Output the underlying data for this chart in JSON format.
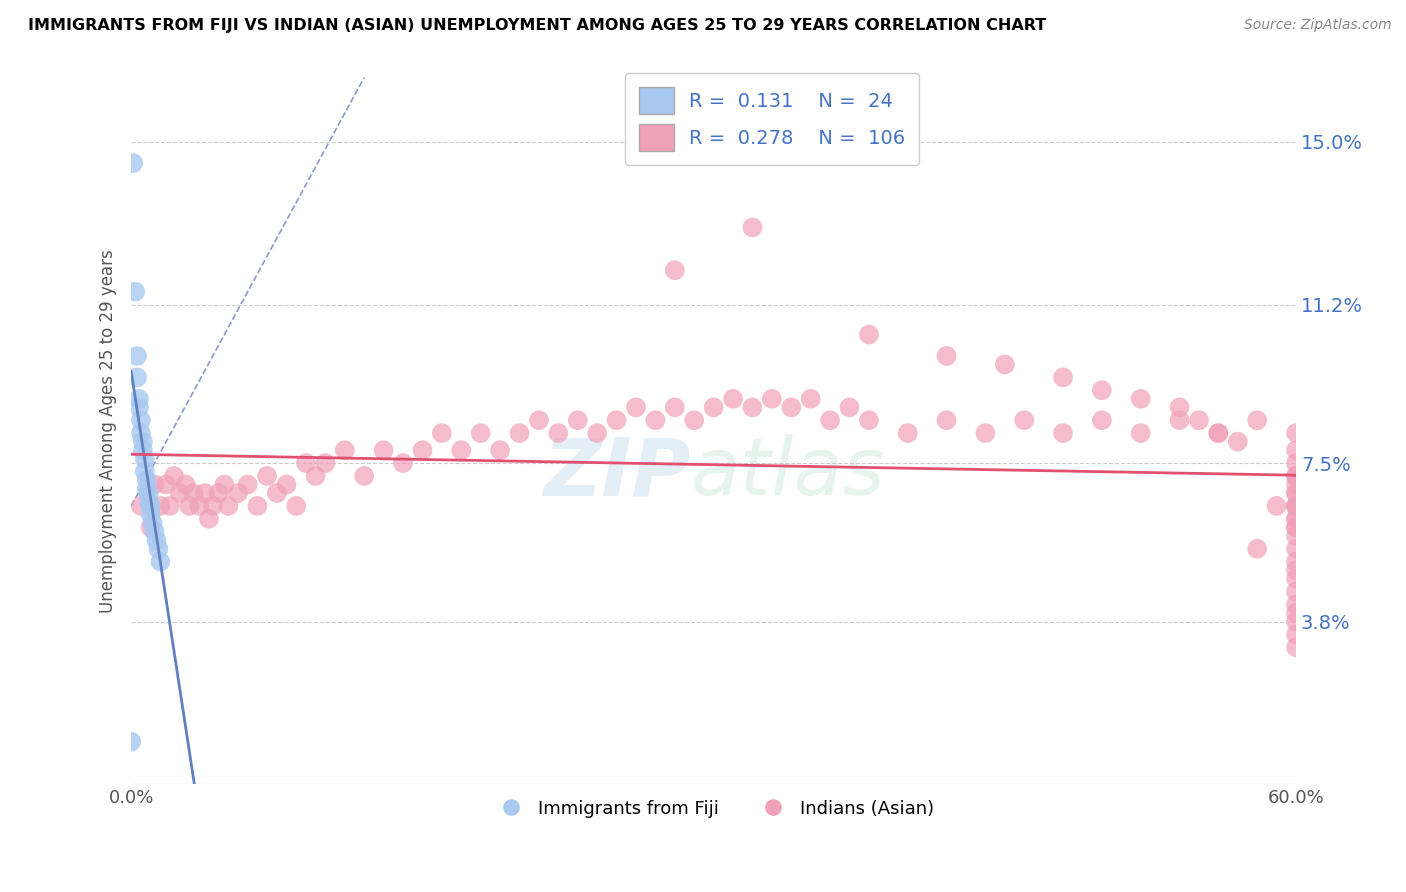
{
  "title": "IMMIGRANTS FROM FIJI VS INDIAN (ASIAN) UNEMPLOYMENT AMONG AGES 25 TO 29 YEARS CORRELATION CHART",
  "source": "Source: ZipAtlas.com",
  "ylabel": "Unemployment Among Ages 25 to 29 years",
  "xlim": [
    0.0,
    0.6
  ],
  "ylim": [
    0.0,
    0.165
  ],
  "xticks": [
    0.0,
    0.1,
    0.2,
    0.3,
    0.4,
    0.5,
    0.6
  ],
  "xticklabels": [
    "0.0%",
    "",
    "",
    "",
    "",
    "",
    "60.0%"
  ],
  "ytick_positions": [
    0.038,
    0.075,
    0.112,
    0.15
  ],
  "ytick_labels": [
    "3.8%",
    "7.5%",
    "11.2%",
    "15.0%"
  ],
  "fiji_R": 0.131,
  "fiji_N": 24,
  "indian_R": 0.278,
  "indian_N": 106,
  "fiji_color": "#a8c8f0",
  "indian_color": "#f0a0b8",
  "fiji_trend_color": "#6080c0",
  "indian_trend_color": "#e05070",
  "legend_label_fiji": "Immigrants from Fiji",
  "legend_label_indian": "Indians (Asian)",
  "watermark": "ZIPAtlas",
  "fiji_x": [
    0.001,
    0.002,
    0.003,
    0.003,
    0.004,
    0.004,
    0.005,
    0.005,
    0.006,
    0.006,
    0.007,
    0.007,
    0.008,
    0.008,
    0.009,
    0.009,
    0.01,
    0.01,
    0.011,
    0.012,
    0.013,
    0.014,
    0.015,
    0.0
  ],
  "fiji_y": [
    0.145,
    0.115,
    0.1,
    0.095,
    0.09,
    0.088,
    0.085,
    0.082,
    0.08,
    0.078,
    0.076,
    0.073,
    0.071,
    0.069,
    0.068,
    0.066,
    0.065,
    0.063,
    0.061,
    0.059,
    0.057,
    0.055,
    0.052,
    0.01
  ],
  "indian_x": [
    0.005,
    0.01,
    0.012,
    0.015,
    0.018,
    0.02,
    0.022,
    0.025,
    0.028,
    0.03,
    0.032,
    0.035,
    0.038,
    0.04,
    0.042,
    0.045,
    0.048,
    0.05,
    0.055,
    0.06,
    0.065,
    0.07,
    0.075,
    0.08,
    0.085,
    0.09,
    0.095,
    0.1,
    0.11,
    0.12,
    0.13,
    0.14,
    0.15,
    0.16,
    0.17,
    0.18,
    0.19,
    0.2,
    0.21,
    0.22,
    0.23,
    0.24,
    0.25,
    0.26,
    0.27,
    0.28,
    0.29,
    0.3,
    0.31,
    0.32,
    0.33,
    0.34,
    0.35,
    0.36,
    0.37,
    0.38,
    0.4,
    0.42,
    0.44,
    0.46,
    0.48,
    0.5,
    0.52,
    0.54,
    0.56,
    0.58,
    0.6,
    0.28,
    0.32,
    0.38,
    0.42,
    0.45,
    0.48,
    0.5,
    0.52,
    0.54,
    0.55,
    0.56,
    0.57,
    0.58,
    0.59,
    0.6,
    0.6,
    0.6,
    0.6,
    0.6,
    0.6,
    0.6,
    0.6,
    0.6,
    0.6,
    0.6,
    0.6,
    0.6,
    0.6,
    0.6,
    0.6,
    0.6,
    0.6,
    0.6,
    0.6,
    0.6,
    0.6,
    0.6,
    0.6,
    0.6
  ],
  "indian_y": [
    0.065,
    0.06,
    0.07,
    0.065,
    0.07,
    0.065,
    0.072,
    0.068,
    0.07,
    0.065,
    0.068,
    0.065,
    0.068,
    0.062,
    0.065,
    0.068,
    0.07,
    0.065,
    0.068,
    0.07,
    0.065,
    0.072,
    0.068,
    0.07,
    0.065,
    0.075,
    0.072,
    0.075,
    0.078,
    0.072,
    0.078,
    0.075,
    0.078,
    0.082,
    0.078,
    0.082,
    0.078,
    0.082,
    0.085,
    0.082,
    0.085,
    0.082,
    0.085,
    0.088,
    0.085,
    0.088,
    0.085,
    0.088,
    0.09,
    0.088,
    0.09,
    0.088,
    0.09,
    0.085,
    0.088,
    0.085,
    0.082,
    0.085,
    0.082,
    0.085,
    0.082,
    0.085,
    0.082,
    0.085,
    0.082,
    0.085,
    0.082,
    0.12,
    0.13,
    0.105,
    0.1,
    0.098,
    0.095,
    0.092,
    0.09,
    0.088,
    0.085,
    0.082,
    0.08,
    0.055,
    0.065,
    0.078,
    0.075,
    0.072,
    0.07,
    0.068,
    0.065,
    0.072,
    0.068,
    0.065,
    0.062,
    0.06,
    0.065,
    0.062,
    0.06,
    0.058,
    0.055,
    0.052,
    0.05,
    0.048,
    0.045,
    0.042,
    0.04,
    0.038,
    0.035,
    0.032
  ]
}
